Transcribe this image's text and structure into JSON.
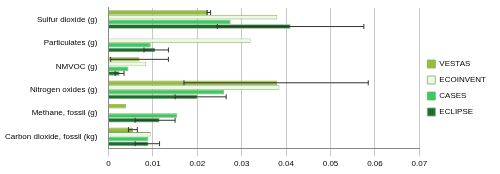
{
  "chart_data": {
    "type": "bar",
    "orientation": "horizontal",
    "categories": [
      "Sulfur dioxide (g)",
      "Particulates (g)",
      "NMVOC (g)",
      "Nitrogen oxides (g)",
      "Methane, fossil (g)",
      "Carbon dioxide, fossil (kg)"
    ],
    "series": [
      {
        "name": "VESTAS",
        "color": "#9bbb3b",
        "values": [
          0.0225,
          null,
          0.007,
          0.038,
          0.004,
          0.0055
        ],
        "errors": [
          [
            0.0222,
            0.023
          ],
          null,
          [
            0.0005,
            0.0135
          ],
          [
            0.017,
            0.0585
          ],
          null,
          [
            0.0045,
            0.0065
          ]
        ]
      },
      {
        "name": "ECOINVENT",
        "color": "#eef7e6",
        "values": [
          0.038,
          0.032,
          0.0085,
          0.0385,
          null,
          0.0095
        ],
        "errors": [
          null,
          null,
          null,
          null,
          null,
          null
        ]
      },
      {
        "name": "CASES",
        "color": "#33cc66",
        "values": [
          0.0275,
          0.0095,
          0.0045,
          0.026,
          0.0155,
          0.009
        ],
        "errors": [
          null,
          null,
          null,
          null,
          null,
          null
        ]
      },
      {
        "name": "ECLIPSE",
        "color": "#1e6b3a",
        "values": [
          0.041,
          0.0105,
          0.0025,
          0.02,
          0.0115,
          0.009
        ],
        "errors": [
          [
            0.0245,
            0.0575
          ],
          [
            0.008,
            0.0135
          ],
          [
            0.0015,
            0.0035
          ],
          [
            0.015,
            0.0265
          ],
          [
            0.006,
            0.015
          ],
          [
            0.006,
            0.0115
          ]
        ]
      }
    ],
    "xlim": [
      0,
      0.07
    ],
    "xticks": [
      0,
      0.01,
      0.02,
      0.03,
      0.04,
      0.05,
      0.06,
      0.07
    ],
    "grid": true,
    "legend": "right"
  }
}
